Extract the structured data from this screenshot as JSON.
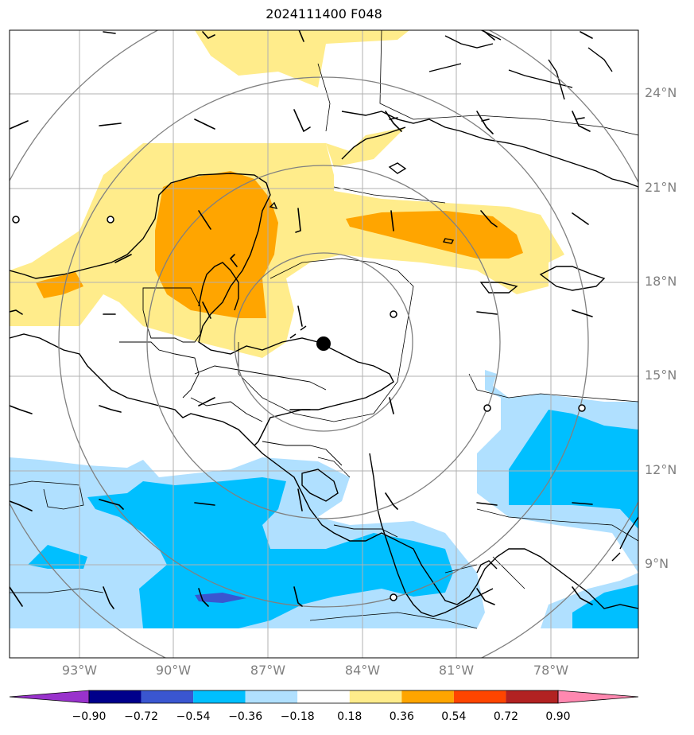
{
  "title": "2024111400 F048",
  "lat_labels": [
    "24°N",
    "21°N",
    "18°N",
    "15°N",
    "12°N",
    "9°N"
  ],
  "lon_labels": [
    "93°W",
    "90°W",
    "87°W",
    "84°W",
    "81°W",
    "78°W"
  ],
  "colorbar": {
    "levels": [
      "−0.90",
      "−0.72",
      "−0.54",
      "−0.36",
      "−0.18",
      "0.18",
      "0.36",
      "0.54",
      "0.72",
      "0.90"
    ],
    "colors": [
      "#9932cc",
      "#00008b",
      "#3a56d0",
      "#00bfff",
      "#b0e0ff",
      "#ffffff",
      "#ffec8b",
      "#ffa500",
      "#ff4500",
      "#b22222",
      "#ff88b0"
    ]
  },
  "fill_colors": {
    "light_yellow": "#ffec8b",
    "orange": "#ffa500",
    "light_blue": "#b0e0ff",
    "blue": "#00bfff",
    "dark_blue": "#3a56d0"
  },
  "center_marker": "storm-center-dot",
  "projection_rings": "gray"
}
